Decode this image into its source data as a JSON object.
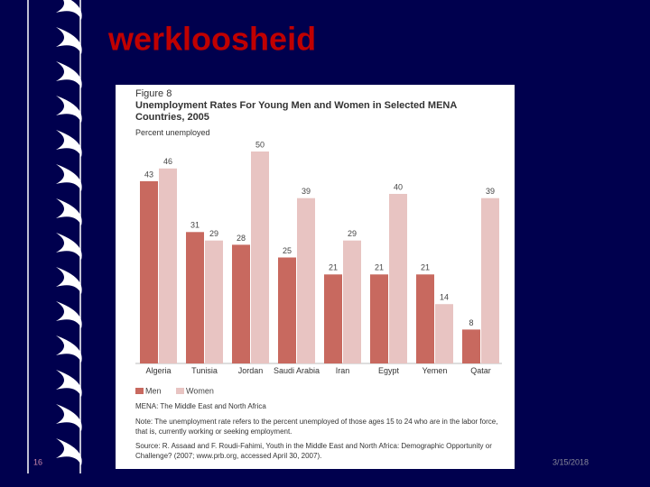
{
  "slide": {
    "title": "werkloosheid",
    "page_number": "16",
    "date": "3/15/2018"
  },
  "chart_data": {
    "type": "bar",
    "figure_label": "Figure 8",
    "title": "Unemployment Rates For Young Men and Women in Selected MENA Countries, 2005",
    "subtitle": "Percent unemployed",
    "categories": [
      "Algeria",
      "Tunisia",
      "Jordan",
      "Saudi Arabia",
      "Iran",
      "Egypt",
      "Yemen",
      "Qatar"
    ],
    "series": [
      {
        "name": "Men",
        "color": "#c8695f",
        "values": [
          43,
          31,
          28,
          25,
          21,
          21,
          21,
          8
        ]
      },
      {
        "name": "Women",
        "color": "#e8c4c2",
        "values": [
          46,
          29,
          50,
          39,
          29,
          40,
          14,
          39
        ]
      }
    ],
    "ylim": [
      0,
      50
    ],
    "legend": "bottom-left",
    "annotations": [
      "MENA: The Middle East and North Africa",
      "Note: The unemployment rate refers to the percent unemployed of those ages 15 to 24 who are in the labor force, that is, currently working or seeking employment.",
      "Source: R. Assaad and F. Roudi-Fahimi, Youth in the Middle East and North Africa: Demographic Opportunity or Challenge? (2007; www.prb.org, accessed April 30, 2007)."
    ]
  }
}
